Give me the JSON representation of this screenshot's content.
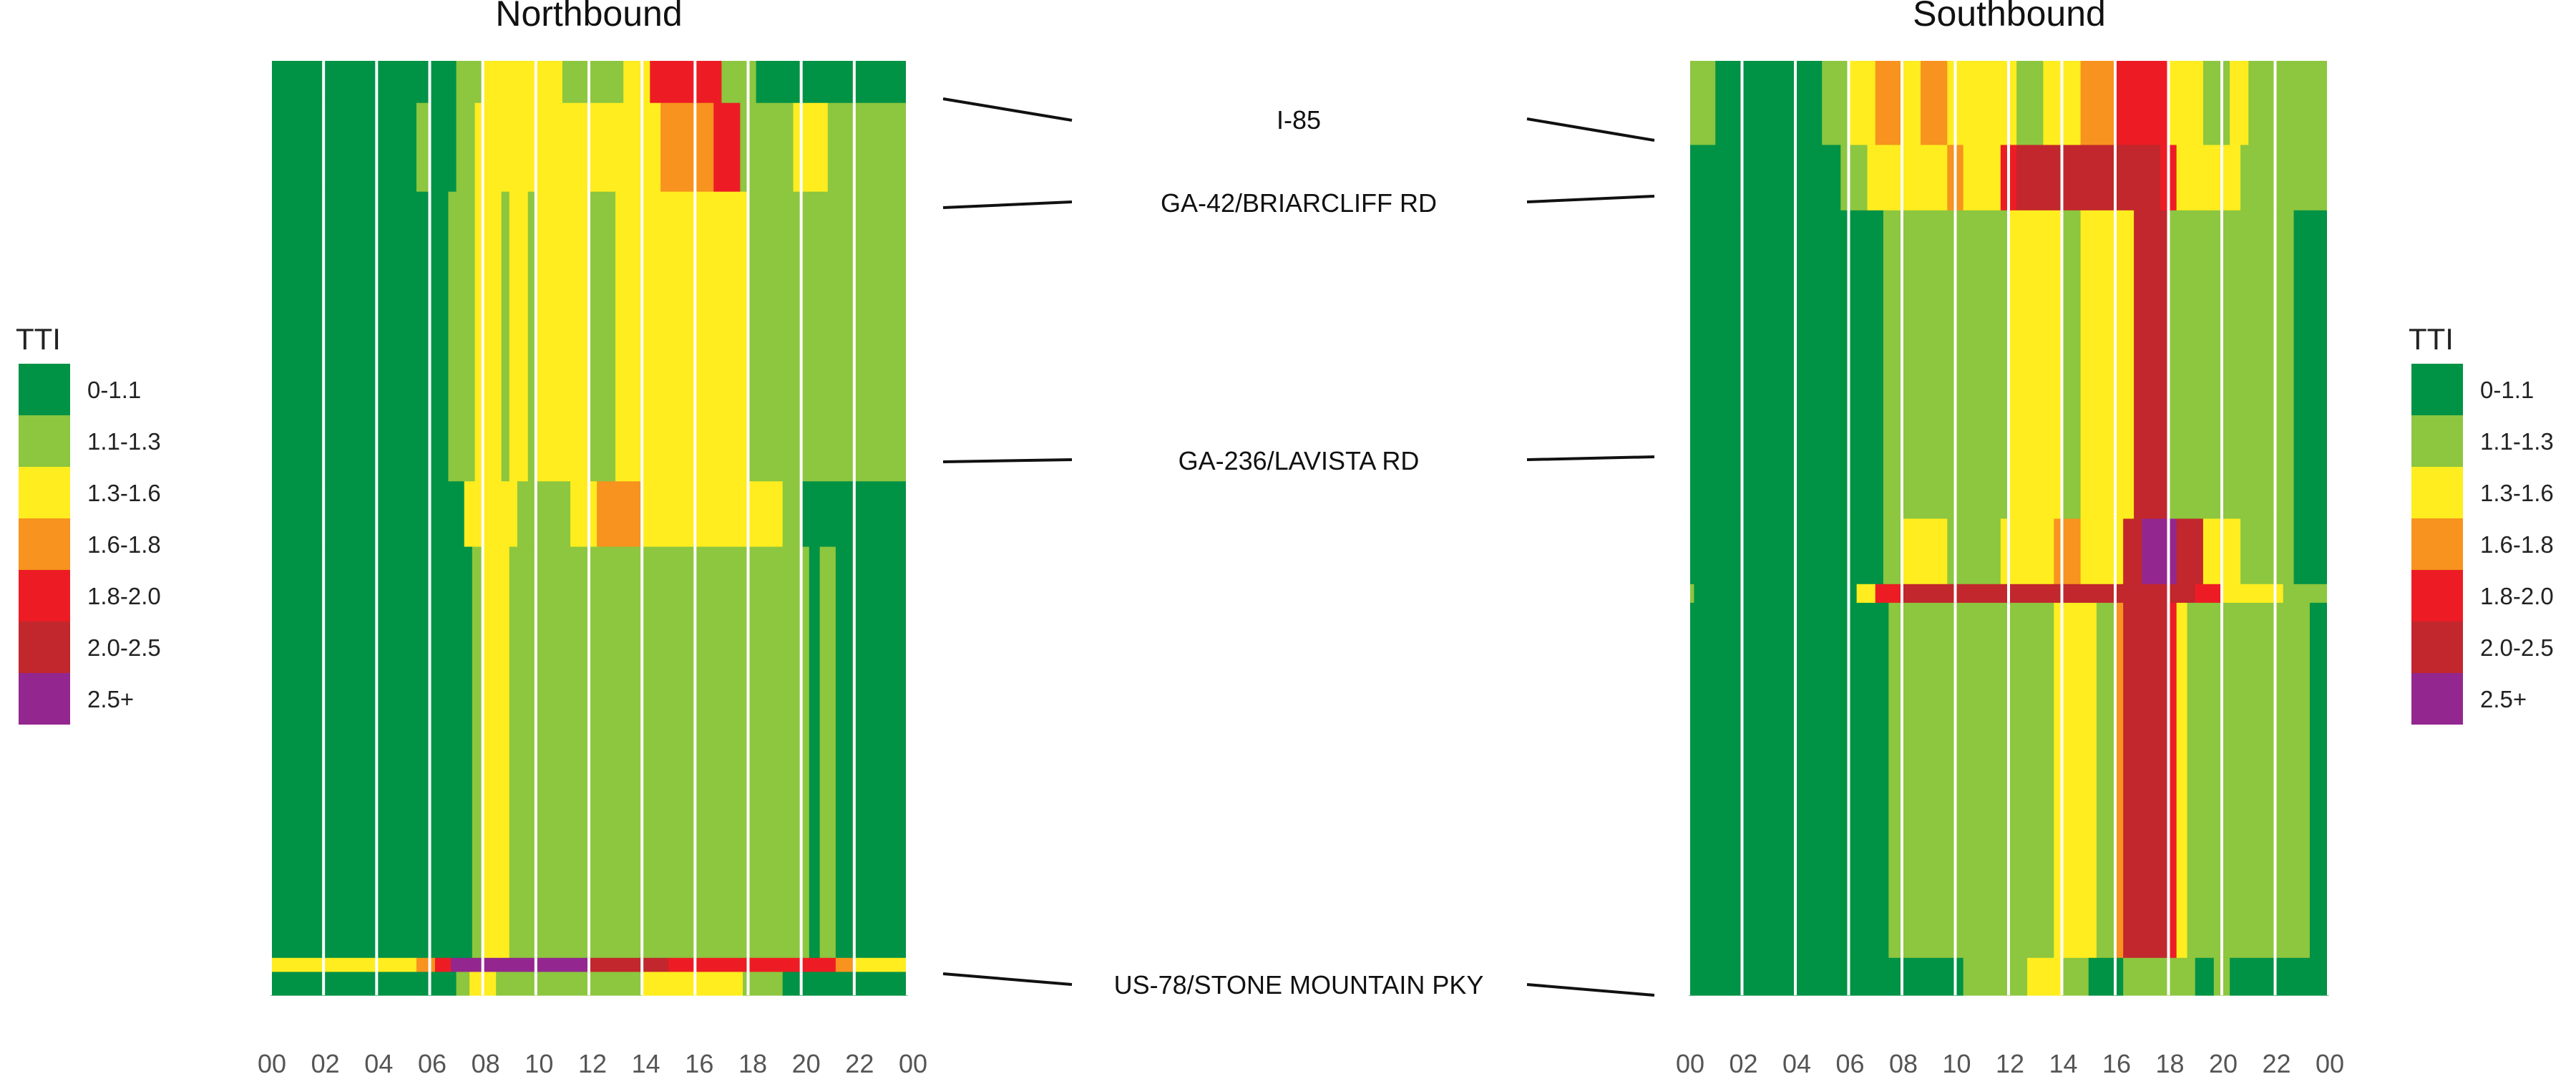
{
  "chart_data": {
    "type": "heatmap",
    "legend": {
      "title": "TTI",
      "placement": "left-and-right",
      "bins": [
        {
          "label": "0-1.1",
          "color": "#009245"
        },
        {
          "label": "1.1-1.3",
          "color": "#8DC63F"
        },
        {
          "label": "1.3-1.6",
          "color": "#FFED1F"
        },
        {
          "label": "1.6-1.8",
          "color": "#F7931E"
        },
        {
          "label": "1.8-2.0",
          "color": "#ED1C24"
        },
        {
          "label": "2.0-2.5",
          "color": "#C1272D"
        },
        {
          "label": "2.5+",
          "color": "#93278F"
        }
      ]
    },
    "x_ticks": [
      "00",
      "02",
      "04",
      "06",
      "08",
      "10",
      "12",
      "14",
      "16",
      "18",
      "20",
      "22",
      "00"
    ],
    "road_labels": [
      "I-85",
      "GA-42/BRIARCLIFF RD",
      "GA-236/LAVISTA RD",
      "US-78/STONE MOUNTAIN PKY"
    ],
    "panels": [
      {
        "title": "Northbound",
        "x_range": [
          0,
          24
        ],
        "segments": [
          {
            "from": 0.0,
            "to": 0.045,
            "cells": [
              [
                0,
                7,
                0
              ],
              [
                7,
                8,
                1
              ],
              [
                8,
                11,
                2
              ],
              [
                11,
                13.3,
                1
              ],
              [
                13.3,
                14.3,
                2
              ],
              [
                14.3,
                17.0,
                4
              ],
              [
                17.0,
                18.3,
                1
              ],
              [
                18.3,
                20.3,
                0
              ]
            ]
          },
          {
            "from": 0.045,
            "to": 0.14,
            "cells": [
              [
                0,
                5.5,
                0
              ],
              [
                5.5,
                6.0,
                1
              ],
              [
                6.0,
                7.0,
                0
              ],
              [
                7.0,
                7.7,
                1
              ],
              [
                7.7,
                14.7,
                2
              ],
              [
                14.7,
                16.7,
                3
              ],
              [
                16.7,
                17.7,
                4
              ],
              [
                17.7,
                19.7,
                1
              ],
              [
                19.7,
                21.0,
                2
              ],
              [
                21.0,
                24,
                1
              ]
            ]
          },
          {
            "from": 0.14,
            "to": 0.45,
            "cells": [
              [
                0,
                6.7,
                0
              ],
              [
                6.7,
                7.7,
                1
              ],
              [
                7.7,
                8.7,
                2
              ],
              [
                8.7,
                9.0,
                1
              ],
              [
                9.0,
                9.7,
                2
              ],
              [
                9.7,
                10.0,
                1
              ],
              [
                10.0,
                12.0,
                2
              ],
              [
                12.0,
                13.0,
                1
              ],
              [
                13.0,
                18.0,
                2
              ],
              [
                18.0,
                19.0,
                1
              ],
              [
                19.0,
                24,
                1
              ]
            ]
          },
          {
            "from": 0.45,
            "to": 0.52,
            "cells": [
              [
                0,
                7.3,
                0
              ],
              [
                7.3,
                9.3,
                2
              ],
              [
                9.3,
                11.3,
                1
              ],
              [
                11.3,
                12.3,
                2
              ],
              [
                12.3,
                14.0,
                3
              ],
              [
                14.0,
                19.3,
                2
              ],
              [
                19.3,
                20.0,
                1
              ],
              [
                20.0,
                24,
                0
              ]
            ]
          },
          {
            "from": 0.52,
            "to": 0.96,
            "cells": [
              [
                0,
                7.6,
                0
              ],
              [
                7.6,
                8.0,
                1
              ],
              [
                8.0,
                9.0,
                2
              ],
              [
                9.0,
                20.3,
                1
              ],
              [
                20.3,
                20.7,
                0
              ],
              [
                20.7,
                21.3,
                1
              ],
              [
                21.3,
                24,
                0
              ]
            ]
          },
          {
            "from": 0.96,
            "to": 0.975,
            "cells": [
              [
                0,
                5.5,
                2
              ],
              [
                5.5,
                6.2,
                3
              ],
              [
                6.2,
                6.8,
                4
              ],
              [
                6.8,
                12.0,
                6
              ],
              [
                12.0,
                15.0,
                5
              ],
              [
                15.0,
                21.3,
                4
              ],
              [
                21.3,
                22.0,
                3
              ],
              [
                22.0,
                24,
                2
              ]
            ]
          },
          {
            "from": 0.975,
            "to": 1.0,
            "cells": [
              [
                0,
                7.0,
                0
              ],
              [
                7.0,
                7.5,
                1
              ],
              [
                7.5,
                8.5,
                2
              ],
              [
                8.5,
                14.0,
                1
              ],
              [
                14.0,
                17.8,
                2
              ],
              [
                17.8,
                19.3,
                1
              ],
              [
                19.3,
                24,
                0
              ]
            ]
          }
        ]
      },
      {
        "title": "Southbound",
        "x_range": [
          0,
          24
        ],
        "segments": [
          {
            "from": 0.0,
            "to": 0.09,
            "cells": [
              [
                0,
                1.0,
                1
              ],
              [
                1.0,
                5.0,
                0
              ],
              [
                5.0,
                6.0,
                1
              ],
              [
                6.0,
                7.0,
                2
              ],
              [
                7.0,
                8.0,
                3
              ],
              [
                8.0,
                8.7,
                2
              ],
              [
                8.7,
                9.7,
                3
              ],
              [
                9.7,
                12.3,
                2
              ],
              [
                12.3,
                13.3,
                1
              ],
              [
                13.3,
                14.7,
                2
              ],
              [
                14.7,
                16.0,
                3
              ],
              [
                16.0,
                18.0,
                4
              ],
              [
                18.0,
                19.3,
                2
              ],
              [
                19.3,
                20.3,
                1
              ],
              [
                20.3,
                21.0,
                2
              ],
              [
                21.0,
                24,
                1
              ]
            ]
          },
          {
            "from": 0.09,
            "to": 0.16,
            "cells": [
              [
                0,
                5.7,
                0
              ],
              [
                5.7,
                6.7,
                1
              ],
              [
                6.7,
                9.7,
                2
              ],
              [
                9.7,
                10.3,
                3
              ],
              [
                10.3,
                11.7,
                2
              ],
              [
                11.7,
                12.3,
                4
              ],
              [
                12.3,
                16.3,
                5
              ],
              [
                16.3,
                17.7,
                5
              ],
              [
                17.7,
                18.3,
                4
              ],
              [
                18.3,
                20.7,
                2
              ],
              [
                20.7,
                24,
                1
              ]
            ]
          },
          {
            "from": 0.16,
            "to": 0.49,
            "cells": [
              [
                0,
                7.3,
                0
              ],
              [
                7.3,
                12.0,
                1
              ],
              [
                12.0,
                14.0,
                2
              ],
              [
                14.0,
                14.7,
                1
              ],
              [
                14.7,
                16.7,
                2
              ],
              [
                16.7,
                18.0,
                5
              ],
              [
                18.0,
                19.3,
                1
              ],
              [
                19.3,
                22.7,
                1
              ],
              [
                22.7,
                24,
                0
              ]
            ]
          },
          {
            "from": 0.49,
            "to": 0.56,
            "cells": [
              [
                0,
                7.3,
                0
              ],
              [
                7.3,
                8.0,
                1
              ],
              [
                8.0,
                9.7,
                2
              ],
              [
                9.7,
                11.7,
                1
              ],
              [
                11.7,
                13.7,
                2
              ],
              [
                13.7,
                14.7,
                3
              ],
              [
                14.7,
                16.3,
                2
              ],
              [
                16.3,
                17.0,
                5
              ],
              [
                17.0,
                18.3,
                6
              ],
              [
                18.3,
                19.3,
                5
              ],
              [
                19.3,
                20.7,
                2
              ],
              [
                20.7,
                22.7,
                1
              ],
              [
                22.7,
                24,
                0
              ]
            ]
          },
          {
            "from": 0.56,
            "to": 0.58,
            "cells": [
              [
                0,
                0.2,
                1
              ],
              [
                0.2,
                6.3,
                0
              ],
              [
                6.3,
                7.0,
                2
              ],
              [
                7.0,
                8.0,
                4
              ],
              [
                8.0,
                12.0,
                5
              ],
              [
                12.0,
                19.0,
                5
              ],
              [
                19.0,
                20.0,
                4
              ],
              [
                20.0,
                22.3,
                2
              ],
              [
                22.3,
                24,
                1
              ]
            ]
          },
          {
            "from": 0.58,
            "to": 0.96,
            "cells": [
              [
                0,
                7.5,
                0
              ],
              [
                7.5,
                13.7,
                1
              ],
              [
                13.7,
                14.7,
                2
              ],
              [
                14.7,
                15.3,
                2
              ],
              [
                15.3,
                16.0,
                1
              ],
              [
                16.0,
                16.3,
                3
              ],
              [
                16.3,
                18.0,
                5
              ],
              [
                18.0,
                18.3,
                4
              ],
              [
                18.3,
                18.7,
                2
              ],
              [
                18.7,
                23.3,
                1
              ],
              [
                23.3,
                24,
                0
              ]
            ]
          },
          {
            "from": 0.96,
            "to": 1.0,
            "cells": [
              [
                0,
                10.3,
                0
              ],
              [
                10.3,
                12.7,
                1
              ],
              [
                12.7,
                14.0,
                2
              ],
              [
                14.0,
                15.0,
                1
              ],
              [
                15.0,
                16.3,
                0
              ],
              [
                16.3,
                18.3,
                1
              ],
              [
                18.3,
                19.0,
                1
              ],
              [
                19.0,
                19.7,
                0
              ],
              [
                19.7,
                20.3,
                1
              ],
              [
                20.3,
                24,
                0
              ]
            ]
          }
        ]
      }
    ]
  }
}
